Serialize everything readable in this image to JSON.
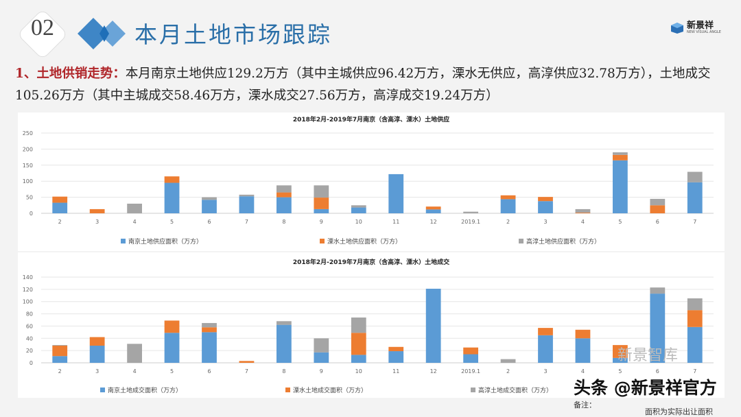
{
  "header": {
    "section_number": "02",
    "title": "本月土地市场跟踪",
    "logo_text": "新景祥",
    "logo_subtext": "NEW VISUAL ANGLE"
  },
  "summary": {
    "lead": "1、土地供销走势：",
    "text": "本月南京土地供应129.2万方（其中主城供应96.42万方，溧水无供应，高淳供应32.78万方），土地成交105.26万方（其中主城成交58.46万方，溧水成交27.56万方，高淳成交19.24万方）"
  },
  "colors": {
    "blue": "#5b9bd5",
    "orange": "#ed7d31",
    "gray": "#a5a5a5",
    "title_blue": "#2a6fa8",
    "lead_red": "#b0262a"
  },
  "chart_data": [
    {
      "type": "bar",
      "stacked": true,
      "title": "2018年2月-2019年7月南京（含高淳、溧水）土地供应",
      "categories": [
        "2",
        "3",
        "4",
        "5",
        "6",
        "7",
        "8",
        "9",
        "10",
        "11",
        "12",
        "2019.1",
        "2",
        "3",
        "4",
        "5",
        "6",
        "7"
      ],
      "ylim": [
        0,
        250
      ],
      "yticks": [
        0,
        50,
        100,
        150,
        200,
        250
      ],
      "grid": true,
      "legend": "bottom",
      "series": [
        {
          "name": "南京土地供应面积（万方）",
          "color": "#5b9bd5",
          "values": [
            33,
            0,
            0,
            95,
            42,
            53,
            50,
            13,
            18,
            122,
            12,
            0,
            44,
            38,
            0,
            165,
            0,
            96.42
          ]
        },
        {
          "name": "溧水土地供应面积（万方）",
          "color": "#ed7d31",
          "values": [
            19,
            13,
            0,
            20,
            0,
            0,
            15,
            36,
            0,
            0,
            9,
            0,
            12,
            13,
            2,
            17,
            25,
            0
          ]
        },
        {
          "name": "高淳土地供应面积（万方）",
          "color": "#a5a5a5",
          "values": [
            0,
            0,
            30,
            0,
            8,
            5,
            22,
            38,
            7,
            0,
            0,
            5,
            0,
            0,
            11,
            8,
            20,
            32.78
          ]
        }
      ]
    },
    {
      "type": "bar",
      "stacked": true,
      "title": "2018年2月-2019年7月南京（含高淳、溧水）土地成交",
      "categories": [
        "2",
        "3",
        "4",
        "5",
        "6",
        "7",
        "8",
        "9",
        "10",
        "11",
        "12",
        "2019.1",
        "2",
        "3",
        "4",
        "5",
        "6",
        "7"
      ],
      "ylim": [
        0,
        140
      ],
      "yticks": [
        0,
        20,
        40,
        60,
        80,
        100,
        120,
        140
      ],
      "grid": true,
      "legend": "bottom",
      "series": [
        {
          "name": "南京土地成交面积（万方）",
          "color": "#5b9bd5",
          "values": [
            11,
            28,
            0,
            49,
            50,
            0,
            62,
            17,
            13,
            19,
            121,
            14,
            0,
            45,
            40,
            8,
            113,
            58.46
          ]
        },
        {
          "name": "溧水土地成交面积（万方）",
          "color": "#ed7d31",
          "values": [
            17,
            14,
            0,
            20,
            8,
            3,
            0,
            0,
            36,
            7,
            0,
            11,
            0,
            12,
            14,
            21,
            0,
            27.56
          ]
        },
        {
          "name": "高淳土地成交面积（万方）",
          "color": "#a5a5a5",
          "values": [
            1,
            0,
            31,
            0,
            7,
            0,
            6,
            23,
            25,
            0,
            0,
            0,
            6,
            0,
            0,
            0,
            10,
            19.24
          ]
        }
      ]
    }
  ],
  "notes": {
    "remark": "备注：",
    "area_note": "面积为实际出让面积"
  },
  "watermark": {
    "main": "头条 @新景祥官方",
    "faded": "新景智库"
  }
}
